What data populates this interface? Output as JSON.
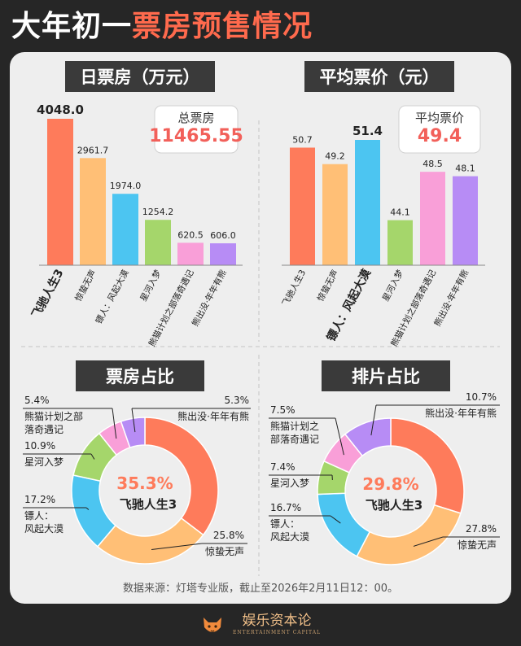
{
  "title": {
    "part1": "大年初一",
    "part2": "票房预售情况"
  },
  "colors": {
    "飞驰人生3": "#fe7b5b",
    "惊蛰无声": "#ffbf76",
    "镖人：风起大漠": "#4cc5f1",
    "星河入梦": "#a5d66b",
    "熊猫计划之部落奇遇记": "#f99fd8",
    "熊出没·年年有熊": "#b78cf5"
  },
  "summary": {
    "total_label": "总票房",
    "total_value": "11465.55",
    "avg_label": "平均票价",
    "avg_value": "49.4"
  },
  "source_text": "数据来源：灯塔专业版，截止至2026年2月11日12：00。",
  "brand": {
    "name": "娱乐资本论",
    "sub": "ENTERTAINMENT CAPITAL"
  },
  "chart_data": [
    {
      "type": "bar",
      "title": "日票房（万元）",
      "categories": [
        "飞驰人生3",
        "惊蛰无声",
        "镖人：风起大漠",
        "星河入梦",
        "熊猫计划之部落奇遇记",
        "熊出没·年年有熊"
      ],
      "values": [
        4048.0,
        2961.7,
        1974.0,
        1254.2,
        620.5,
        606.0
      ],
      "value_labels": [
        "4048.0",
        "2961.7",
        "1974.0",
        "1254.2",
        "620.5",
        "606.0"
      ],
      "highlight_index": 0,
      "ylim": [
        0,
        4048
      ],
      "grid": false
    },
    {
      "type": "bar",
      "title": "平均票价（元）",
      "categories": [
        "飞驰人生3",
        "惊蛰无声",
        "镖人：风起大漠",
        "星河入梦",
        "熊猫计划之部落奇遇记",
        "熊出没·年年有熊"
      ],
      "values": [
        50.7,
        49.2,
        51.4,
        44.1,
        48.5,
        48.1
      ],
      "value_labels": [
        "50.7",
        "49.2",
        "51.4",
        "44.1",
        "48.5",
        "48.1"
      ],
      "highlight_index": 2,
      "grid": false
    },
    {
      "type": "pie",
      "title": "票房占比",
      "center_value": "35.3%",
      "center_label": "飞驰人生3",
      "slices": [
        {
          "name": "飞驰人生3",
          "value": 35.3,
          "label": "35.3%"
        },
        {
          "name": "惊蛰无声",
          "value": 25.8,
          "label": "25.8%"
        },
        {
          "name": "镖人：风起大漠",
          "value": 17.2,
          "label": "17.2%"
        },
        {
          "name": "星河入梦",
          "value": 10.9,
          "label": "10.9%"
        },
        {
          "name": "熊猫计划之部落奇遇记",
          "value": 5.4,
          "label": "5.4%"
        },
        {
          "name": "熊出没·年年有熊",
          "value": 5.3,
          "label": "5.3%"
        }
      ],
      "slice_labels": {
        "惊蛰无声": [
          "惊蛰无声"
        ],
        "镖人：风起大漠": [
          "镖人：",
          "风起大漠"
        ],
        "星河入梦": [
          "星河入梦"
        ],
        "熊猫计划之部落奇遇记": [
          "熊猫计划之部",
          "落奇遇记"
        ],
        "熊出没·年年有熊": [
          "熊出没·年年有熊"
        ]
      }
    },
    {
      "type": "pie",
      "title": "排片占比",
      "center_value": "29.8%",
      "center_label": "飞驰人生3",
      "slices": [
        {
          "name": "飞驰人生3",
          "value": 29.8,
          "label": "29.8%"
        },
        {
          "name": "惊蛰无声",
          "value": 27.8,
          "label": "27.8%"
        },
        {
          "name": "镖人：风起大漠",
          "value": 16.7,
          "label": "16.7%"
        },
        {
          "name": "星河入梦",
          "value": 7.4,
          "label": "7.4%"
        },
        {
          "name": "熊猫计划之部落奇遇记",
          "value": 7.5,
          "label": "7.5%"
        },
        {
          "name": "熊出没·年年有熊",
          "value": 10.7,
          "label": "10.7%"
        }
      ],
      "slice_labels": {
        "惊蛰无声": [
          "惊蛰无声"
        ],
        "镖人：风起大漠": [
          "镖人：",
          "风起大漠"
        ],
        "星河入梦": [
          "星河入梦"
        ],
        "熊猫计划之部落奇遇记": [
          "熊猫计划之",
          "部落奇遇记"
        ],
        "熊出没·年年有熊": [
          "熊出没·年年有熊"
        ]
      }
    }
  ]
}
